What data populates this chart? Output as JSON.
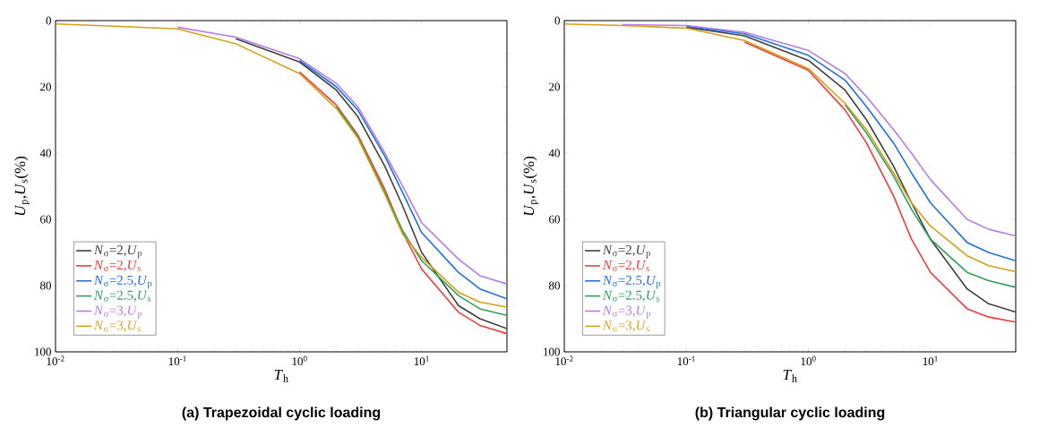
{
  "chart_data": [
    {
      "type": "line",
      "title": "(a) Trapezoidal cyclic loading",
      "xlabel": "*T*$_{h}$",
      "ylabel": "*U*$_{p}$,*U*$_{s}$(%)",
      "log": "x",
      "legend": "bottom left",
      "xlim": [
        0.01,
        50
      ],
      "ylim": [
        100,
        0
      ],
      "xticks": [
        {
          "value": 0.01,
          "label": "10$^{-2}$"
        },
        {
          "value": 0.1,
          "label": "10$^{-1}$"
        },
        {
          "value": 1,
          "label": "10$^{0}$"
        },
        {
          "value": 10,
          "label": "10$^{1}$"
        }
      ],
      "yticks": [
        0,
        20,
        40,
        60,
        80,
        100
      ],
      "x": [
        0.01,
        0.03,
        0.1,
        0.3,
        1,
        2,
        3,
        5,
        7,
        10,
        20,
        30,
        50
      ],
      "series": [
        {
          "name": "*N*$_{σ}$=2,*U*$_{p}$",
          "color": "#404040",
          "values": [
            null,
            null,
            null,
            5.5,
            12.5,
            21,
            29,
            44,
            56,
            70,
            86,
            90,
            93
          ]
        },
        {
          "name": "*N*$_{σ}$=2,*U*$_{s}$",
          "color": "#ef3b3b",
          "values": [
            null,
            null,
            null,
            null,
            15.5,
            25.5,
            34.5,
            51,
            64,
            75,
            88,
            92,
            94.5
          ]
        },
        {
          "name": "*N*$_{σ}$=2.5,*U*$_{p}$",
          "color": "#1f6fe0",
          "values": [
            null,
            null,
            null,
            null,
            12,
            20,
            27,
            41,
            52,
            64,
            76,
            81,
            84
          ]
        },
        {
          "name": "*N*$_{σ}$=2.5,*U*$_{s}$",
          "color": "#2ca05a",
          "values": [
            null,
            null,
            null,
            null,
            null,
            26,
            35,
            52,
            63.5,
            72.5,
            83,
            87,
            89
          ]
        },
        {
          "name": "*N*$_{σ}$=3,*U*$_{p}$",
          "color": "#b57ce6",
          "values": [
            null,
            null,
            2,
            5,
            11.5,
            19,
            26,
            40,
            50,
            61,
            72,
            77,
            79.5
          ]
        },
        {
          "name": "*N*$_{σ}$=3,*U*$_{s}$",
          "color": "#d4a017",
          "values": [
            1,
            1.7,
            2.5,
            7,
            16,
            26.5,
            35.5,
            52.5,
            64.5,
            71.5,
            82,
            85,
            86.5
          ]
        }
      ]
    },
    {
      "type": "line",
      "title": "(b) Triangular cyclic loading",
      "xlabel": "*T*$_{h}$",
      "ylabel": "*U*$_{p}$,*U*$_{s}$(%)",
      "log": "x",
      "legend": "bottom left",
      "xlim": [
        0.01,
        50
      ],
      "ylim": [
        100,
        0
      ],
      "xticks": [
        {
          "value": 0.01,
          "label": "10$^{-2}$"
        },
        {
          "value": 0.1,
          "label": "10$^{-1}$"
        },
        {
          "value": 1,
          "label": "10$^{0}$"
        },
        {
          "value": 10,
          "label": "10$^{1}$"
        }
      ],
      "yticks": [
        0,
        20,
        40,
        60,
        80,
        100
      ],
      "x": [
        0.01,
        0.03,
        0.1,
        0.3,
        1,
        2,
        3,
        5,
        7,
        10,
        20,
        30,
        50
      ],
      "series": [
        {
          "name": "*N*$_{σ}$=2,*U*$_{p}$",
          "color": "#404040",
          "values": [
            null,
            null,
            2,
            4.6,
            12,
            21,
            30,
            44,
            55,
            66,
            81,
            85.5,
            88
          ]
        },
        {
          "name": "*N*$_{σ}$=2,*U*$_{s}$",
          "color": "#ef3b3b",
          "values": [
            null,
            null,
            null,
            6.5,
            15,
            27,
            37,
            53,
            66,
            76,
            87,
            89.5,
            91
          ]
        },
        {
          "name": "*N*$_{σ}$=2.5,*U*$_{p}$",
          "color": "#1f6fe0",
          "values": [
            null,
            null,
            1.7,
            4,
            10.5,
            18,
            26,
            37,
            46,
            55,
            67,
            70,
            72.5
          ]
        },
        {
          "name": "*N*$_{σ}$=2.5,*U*$_{s}$",
          "color": "#2ca05a",
          "values": [
            null,
            null,
            null,
            null,
            null,
            25.5,
            34,
            47,
            57,
            66,
            76,
            78.5,
            80.5
          ]
        },
        {
          "name": "*N*$_{σ}$=3,*U*$_{p}$",
          "color": "#b57ce6",
          "values": [
            null,
            1.2,
            1.5,
            3.5,
            9,
            16,
            23,
            33,
            40,
            48,
            60,
            63,
            65
          ]
        },
        {
          "name": "*N*$_{σ}$=3,*U*$_{s}$",
          "color": "#d4a017",
          "values": [
            1,
            1.5,
            2.3,
            6,
            14.5,
            25,
            33,
            46,
            55,
            62,
            71,
            74,
            75.8
          ]
        }
      ]
    }
  ]
}
